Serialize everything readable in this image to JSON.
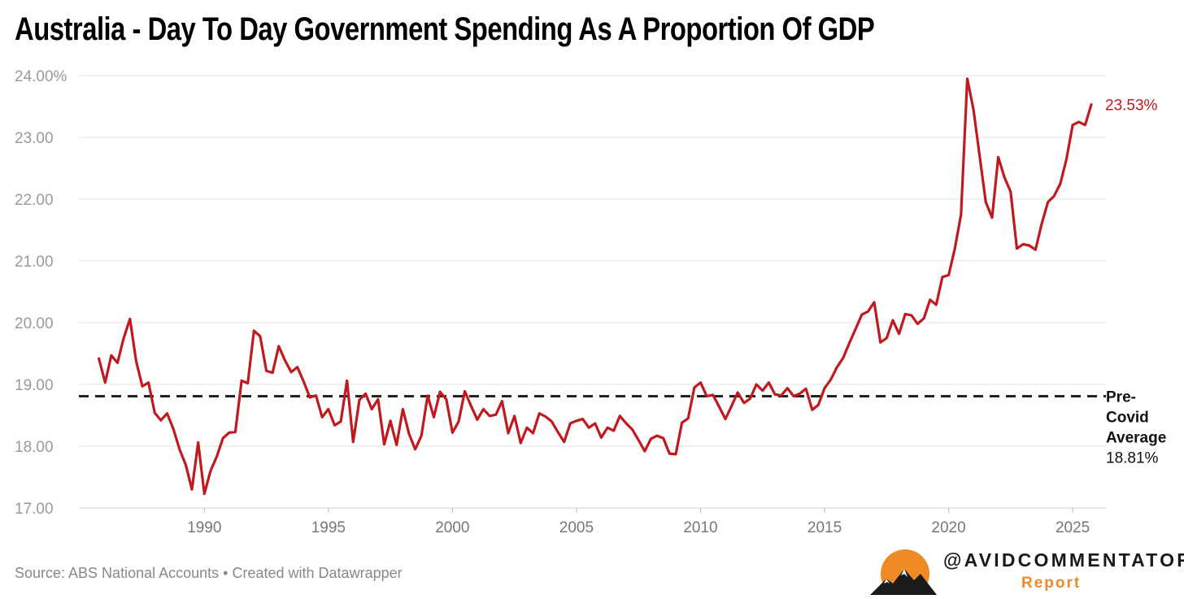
{
  "title": "Australia - Day To Day Government Spending As A Proportion Of GDP",
  "footer": {
    "source": "Source: ABS National Accounts",
    "separator": "•",
    "created_with": "Created with Datawrapper"
  },
  "brand": {
    "handle": "@AVIDCOMMENTATOR",
    "sub": "Report",
    "logo_icon": "mountain-sun-logo",
    "colors": {
      "sun": "#f08a24",
      "mountain": "#1a1a1a"
    }
  },
  "colors": {
    "line": "#c0191e",
    "reference": "#222222",
    "grid": "#e3e3e3"
  },
  "chart_data": {
    "type": "line",
    "title": "Australia - Day To Day Government Spending As A Proportion Of GDP",
    "xlabel": "",
    "ylabel": "",
    "xlim": [
      1985.5,
      2025.75
    ],
    "ylim": [
      17,
      24
    ],
    "grid": "horizontal",
    "y_ticks": [
      "17.00",
      "18.00",
      "19.00",
      "20.00",
      "21.00",
      "22.00",
      "23.00",
      "24.00%"
    ],
    "x_ticks": [
      "1990",
      "1995",
      "2000",
      "2005",
      "2010",
      "2015",
      "2020",
      "2025"
    ],
    "series": [
      {
        "color": "#c0191e",
        "end_label": "23.53%",
        "points": [
          [
            1985.75,
            19.42
          ],
          [
            1986.0,
            19.03
          ],
          [
            1986.25,
            19.47
          ],
          [
            1986.5,
            19.35
          ],
          [
            1986.75,
            19.75
          ],
          [
            1987.0,
            20.06
          ],
          [
            1987.25,
            19.38
          ],
          [
            1987.5,
            18.97
          ],
          [
            1987.75,
            19.03
          ],
          [
            1988.0,
            18.54
          ],
          [
            1988.25,
            18.42
          ],
          [
            1988.5,
            18.53
          ],
          [
            1988.75,
            18.28
          ],
          [
            1989.0,
            17.95
          ],
          [
            1989.25,
            17.7
          ],
          [
            1989.5,
            17.3
          ],
          [
            1989.75,
            18.06
          ],
          [
            1990.0,
            17.23
          ],
          [
            1990.25,
            17.6
          ],
          [
            1990.5,
            17.83
          ],
          [
            1990.75,
            18.13
          ],
          [
            1991.0,
            18.22
          ],
          [
            1991.25,
            18.23
          ],
          [
            1991.5,
            19.06
          ],
          [
            1991.75,
            19.02
          ],
          [
            1992.0,
            19.87
          ],
          [
            1992.25,
            19.78
          ],
          [
            1992.5,
            19.22
          ],
          [
            1992.75,
            19.19
          ],
          [
            1993.0,
            19.62
          ],
          [
            1993.25,
            19.39
          ],
          [
            1993.5,
            19.2
          ],
          [
            1993.75,
            19.28
          ],
          [
            1994.0,
            19.05
          ],
          [
            1994.25,
            18.79
          ],
          [
            1994.5,
            18.82
          ],
          [
            1994.75,
            18.47
          ],
          [
            1995.0,
            18.6
          ],
          [
            1995.25,
            18.34
          ],
          [
            1995.5,
            18.4
          ],
          [
            1995.75,
            19.06
          ],
          [
            1996.0,
            18.07
          ],
          [
            1996.25,
            18.75
          ],
          [
            1996.5,
            18.85
          ],
          [
            1996.75,
            18.6
          ],
          [
            1997.0,
            18.76
          ],
          [
            1997.25,
            18.03
          ],
          [
            1997.5,
            18.41
          ],
          [
            1997.75,
            18.02
          ],
          [
            1998.0,
            18.6
          ],
          [
            1998.25,
            18.2
          ],
          [
            1998.5,
            17.95
          ],
          [
            1998.75,
            18.17
          ],
          [
            1999.0,
            18.82
          ],
          [
            1999.25,
            18.47
          ],
          [
            1999.5,
            18.88
          ],
          [
            1999.75,
            18.76
          ],
          [
            2000.0,
            18.22
          ],
          [
            2000.25,
            18.4
          ],
          [
            2000.5,
            18.89
          ],
          [
            2000.75,
            18.65
          ],
          [
            2001.0,
            18.43
          ],
          [
            2001.25,
            18.6
          ],
          [
            2001.5,
            18.49
          ],
          [
            2001.75,
            18.51
          ],
          [
            2002.0,
            18.73
          ],
          [
            2002.25,
            18.21
          ],
          [
            2002.5,
            18.49
          ],
          [
            2002.75,
            18.05
          ],
          [
            2003.0,
            18.3
          ],
          [
            2003.25,
            18.21
          ],
          [
            2003.5,
            18.53
          ],
          [
            2003.75,
            18.48
          ],
          [
            2004.0,
            18.4
          ],
          [
            2004.25,
            18.23
          ],
          [
            2004.5,
            18.07
          ],
          [
            2004.75,
            18.37
          ],
          [
            2005.0,
            18.41
          ],
          [
            2005.25,
            18.44
          ],
          [
            2005.5,
            18.3
          ],
          [
            2005.75,
            18.37
          ],
          [
            2006.0,
            18.14
          ],
          [
            2006.25,
            18.3
          ],
          [
            2006.5,
            18.25
          ],
          [
            2006.75,
            18.49
          ],
          [
            2007.0,
            18.37
          ],
          [
            2007.25,
            18.27
          ],
          [
            2007.5,
            18.1
          ],
          [
            2007.75,
            17.92
          ],
          [
            2008.0,
            18.12
          ],
          [
            2008.25,
            18.17
          ],
          [
            2008.5,
            18.13
          ],
          [
            2008.75,
            17.88
          ],
          [
            2009.0,
            17.87
          ],
          [
            2009.25,
            18.38
          ],
          [
            2009.5,
            18.45
          ],
          [
            2009.75,
            18.95
          ],
          [
            2010.0,
            19.03
          ],
          [
            2010.25,
            18.81
          ],
          [
            2010.5,
            18.83
          ],
          [
            2010.75,
            18.64
          ],
          [
            2011.0,
            18.44
          ],
          [
            2011.25,
            18.65
          ],
          [
            2011.5,
            18.87
          ],
          [
            2011.75,
            18.7
          ],
          [
            2012.0,
            18.77
          ],
          [
            2012.25,
            19.0
          ],
          [
            2012.5,
            18.9
          ],
          [
            2012.75,
            19.03
          ],
          [
            2013.0,
            18.84
          ],
          [
            2013.25,
            18.82
          ],
          [
            2013.5,
            18.94
          ],
          [
            2013.75,
            18.81
          ],
          [
            2014.0,
            18.85
          ],
          [
            2014.25,
            18.93
          ],
          [
            2014.5,
            18.59
          ],
          [
            2014.75,
            18.67
          ],
          [
            2015.0,
            18.94
          ],
          [
            2015.25,
            19.08
          ],
          [
            2015.5,
            19.28
          ],
          [
            2015.75,
            19.43
          ],
          [
            2016.0,
            19.67
          ],
          [
            2016.25,
            19.9
          ],
          [
            2016.5,
            20.13
          ],
          [
            2016.75,
            20.18
          ],
          [
            2017.0,
            20.33
          ],
          [
            2017.25,
            19.68
          ],
          [
            2017.5,
            19.75
          ],
          [
            2017.75,
            20.04
          ],
          [
            2018.0,
            19.82
          ],
          [
            2018.25,
            20.14
          ],
          [
            2018.5,
            20.12
          ],
          [
            2018.75,
            19.98
          ],
          [
            2019.0,
            20.07
          ],
          [
            2019.25,
            20.37
          ],
          [
            2019.5,
            20.29
          ],
          [
            2019.75,
            20.74
          ],
          [
            2020.0,
            20.77
          ],
          [
            2020.25,
            21.2
          ],
          [
            2020.5,
            21.75
          ],
          [
            2020.75,
            23.95
          ],
          [
            2021.0,
            23.45
          ],
          [
            2021.25,
            22.7
          ],
          [
            2021.5,
            21.95
          ],
          [
            2021.75,
            21.7
          ],
          [
            2022.0,
            22.68
          ],
          [
            2022.25,
            22.35
          ],
          [
            2022.5,
            22.12
          ],
          [
            2022.75,
            21.2
          ],
          [
            2023.0,
            21.27
          ],
          [
            2023.25,
            21.25
          ],
          [
            2023.5,
            21.18
          ],
          [
            2023.75,
            21.6
          ],
          [
            2024.0,
            21.95
          ],
          [
            2024.25,
            22.05
          ],
          [
            2024.5,
            22.25
          ],
          [
            2024.75,
            22.65
          ],
          [
            2025.0,
            23.2
          ],
          [
            2025.25,
            23.25
          ],
          [
            2025.5,
            23.2
          ],
          [
            2025.75,
            23.53
          ]
        ]
      }
    ],
    "reference_line": {
      "value": 18.81,
      "label_lines": [
        "Pre-",
        "Covid",
        "Average"
      ],
      "value_label": "18.81%"
    }
  }
}
